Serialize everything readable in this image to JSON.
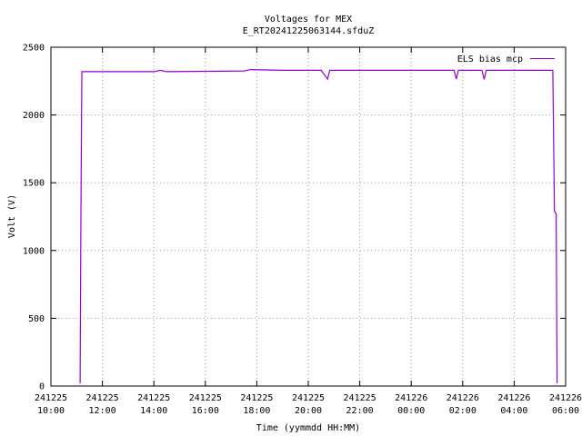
{
  "chart_data": {
    "type": "line",
    "title": "Voltages for MEX",
    "subtitle": "E_RT20241225063144.sfduZ",
    "xlabel": "Time (yymmdd HH:MM)",
    "ylabel": "Volt (V)",
    "xlim": [
      "241225 10:00",
      "241226 06:00"
    ],
    "ylim": [
      0,
      2500
    ],
    "grid": true,
    "legend_position": "top-right",
    "x_ticks": [
      {
        "date": "241225",
        "time": "10:00"
      },
      {
        "date": "241225",
        "time": "12:00"
      },
      {
        "date": "241225",
        "time": "14:00"
      },
      {
        "date": "241225",
        "time": "16:00"
      },
      {
        "date": "241225",
        "time": "18:00"
      },
      {
        "date": "241225",
        "time": "20:00"
      },
      {
        "date": "241225",
        "time": "22:00"
      },
      {
        "date": "241226",
        "time": "00:00"
      },
      {
        "date": "241226",
        "time": "02:00"
      },
      {
        "date": "241226",
        "time": "04:00"
      },
      {
        "date": "241226",
        "time": "06:00"
      }
    ],
    "y_ticks": [
      "0",
      "500",
      "1000",
      "1500",
      "2000",
      "2500"
    ],
    "series": [
      {
        "name": "ELS bias mcp",
        "color": "#9400d3",
        "points": [
          [
            "241225 11:08",
            20
          ],
          [
            "241225 11:10",
            1280
          ],
          [
            "241225 11:12",
            2320
          ],
          [
            "241225 14:00",
            2320
          ],
          [
            "241225 14:15",
            2330
          ],
          [
            "241225 14:30",
            2320
          ],
          [
            "241225 17:30",
            2325
          ],
          [
            "241225 17:45",
            2335
          ],
          [
            "241225 19:00",
            2330
          ],
          [
            "241225 20:30",
            2330
          ],
          [
            "241225 20:45",
            2265
          ],
          [
            "241225 20:50",
            2330
          ],
          [
            "241226 01:40",
            2330
          ],
          [
            "241226 01:45",
            2265
          ],
          [
            "241226 01:50",
            2330
          ],
          [
            "241226 02:45",
            2330
          ],
          [
            "241226 02:50",
            2262
          ],
          [
            "241226 02:55",
            2330
          ],
          [
            "241226 05:30",
            2330
          ],
          [
            "241226 05:34",
            1290
          ],
          [
            "241226 05:38",
            1270
          ],
          [
            "241226 05:40",
            20
          ]
        ]
      }
    ]
  }
}
